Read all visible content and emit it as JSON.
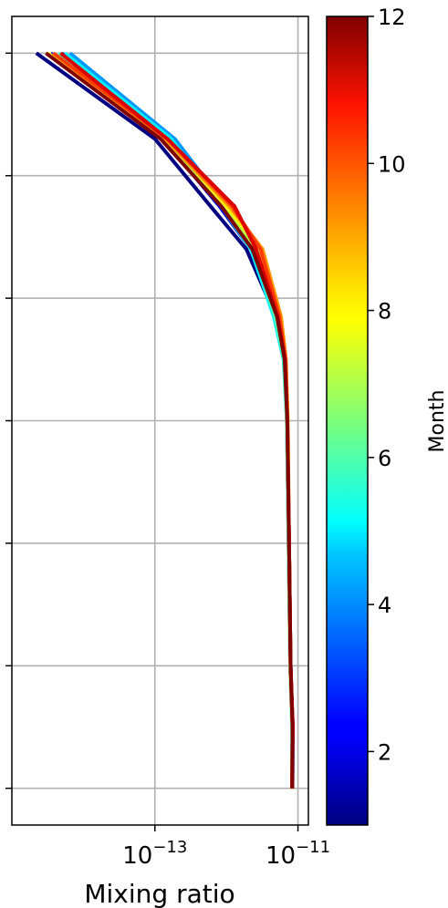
{
  "chart_data": {
    "type": "line",
    "xlabel": "Mixing ratio",
    "ylabel": "",
    "xscale": "log",
    "xlim": [
      1e-15,
      1.4e-11
    ],
    "ylim": [
      -0.3,
      6.3
    ],
    "x_ticks": [
      {
        "value": 1e-13,
        "base": "10",
        "exp": "−13"
      },
      {
        "value": 1e-11,
        "base": "10",
        "exp": "−11"
      }
    ],
    "y_ticks": [
      0,
      1,
      2,
      3,
      4,
      5,
      6
    ],
    "grid": true,
    "colorbar": {
      "label": "Month",
      "range": [
        1,
        12
      ],
      "ticks": [
        "2",
        "4",
        "6",
        "8",
        "10",
        "12"
      ],
      "colormap": "jet"
    },
    "levels": [
      6,
      5.3,
      4.75,
      4.4,
      3.85,
      3.5,
      3.0,
      2.0,
      1.0,
      0.5,
      0.0
    ],
    "series": [
      {
        "month": 1,
        "x": [
          2.2e-15,
          1e-13,
          6e-13,
          1.9e-12,
          4.9e-12,
          6.5e-12,
          7.1e-12,
          7.5e-12,
          7.9e-12,
          8.4e-12,
          8.3e-12
        ]
      },
      {
        "month": 2,
        "x": [
          3.5e-15,
          1.3e-13,
          8e-13,
          2.2e-12,
          5e-12,
          6.5e-12,
          7.1e-12,
          7.5e-12,
          7.9e-12,
          8.4e-12,
          8.3e-12
        ]
      },
      {
        "month": 3,
        "x": [
          5e-15,
          1.6e-13,
          9.5e-13,
          2.5e-12,
          5.1e-12,
          6.5e-12,
          7.1e-12,
          7.5e-12,
          7.8e-12,
          8.5e-12,
          8.4e-12
        ]
      },
      {
        "month": 4,
        "x": [
          6.5e-15,
          1.9e-13,
          1e-12,
          2.4e-12,
          4.9e-12,
          6.4e-12,
          7e-12,
          7.4e-12,
          7.8e-12,
          8.4e-12,
          8.3e-12
        ]
      },
      {
        "month": 5,
        "x": [
          5.5e-15,
          1.7e-13,
          8.5e-13,
          2.2e-12,
          4.6e-12,
          6.3e-12,
          7e-12,
          7.4e-12,
          7.8e-12,
          8.3e-12,
          8.3e-12
        ]
      },
      {
        "month": 6,
        "x": [
          4.5e-15,
          1.5e-13,
          8.5e-13,
          2.4e-12,
          4.8e-12,
          6.4e-12,
          7e-12,
          7.4e-12,
          7.8e-12,
          8.3e-12,
          8.3e-12
        ]
      },
      {
        "month": 7,
        "x": [
          3.8e-15,
          1.4e-13,
          9e-13,
          2.7e-12,
          5.3e-12,
          6.6e-12,
          7.1e-12,
          7.5e-12,
          7.8e-12,
          8.4e-12,
          8.3e-12
        ]
      },
      {
        "month": 8,
        "x": [
          3.2e-15,
          1.5e-13,
          1e-12,
          3e-12,
          5.6e-12,
          6.7e-12,
          7.2e-12,
          7.5e-12,
          7.9e-12,
          8.4e-12,
          8.3e-12
        ]
      },
      {
        "month": 9,
        "x": [
          3e-15,
          1.4e-13,
          1.1e-12,
          3.2e-12,
          5.8e-12,
          6.8e-12,
          7.2e-12,
          7.5e-12,
          7.9e-12,
          8.4e-12,
          8.3e-12
        ]
      },
      {
        "month": 10,
        "x": [
          3.8e-15,
          1.5e-13,
          1.2e-12,
          3e-12,
          5.5e-12,
          6.7e-12,
          7.1e-12,
          7.5e-12,
          7.9e-12,
          8.4e-12,
          8.3e-12
        ]
      },
      {
        "month": 11,
        "x": [
          4.8e-15,
          1.5e-13,
          1.3e-12,
          2.6e-12,
          5.2e-12,
          6.6e-12,
          7.1e-12,
          7.5e-12,
          7.9e-12,
          8.5e-12,
          8.3e-12
        ]
      },
      {
        "month": 12,
        "x": [
          3e-15,
          1.2e-13,
          8.5e-13,
          2.3e-12,
          5.1e-12,
          6.5e-12,
          7.1e-12,
          7.5e-12,
          7.9e-12,
          8.4e-12,
          8.3e-12
        ]
      }
    ]
  }
}
